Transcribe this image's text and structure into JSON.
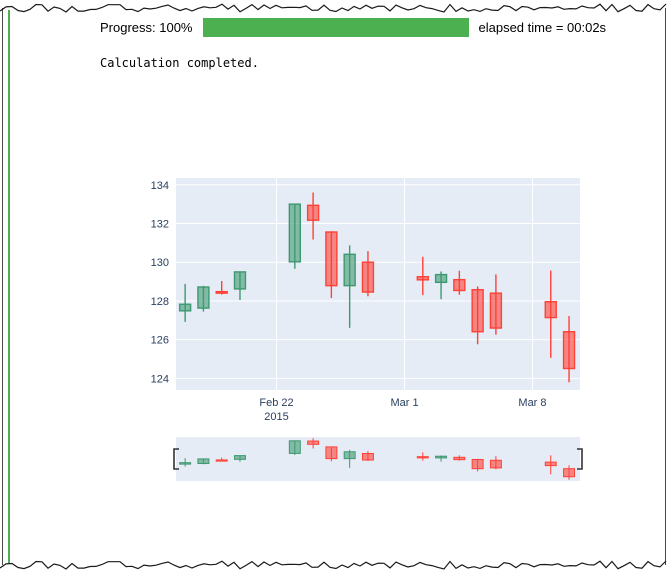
{
  "progress": {
    "label": "Progress: 100%",
    "value": 100,
    "elapsed": "elapsed time = 00:02s"
  },
  "stdout": {
    "text": "Calculation completed."
  },
  "colors": {
    "progress_green": "#4caf50",
    "cell_indicator_green": "#4caf50",
    "plot_bg": "#e5ecf6",
    "grid": "#ffffff",
    "tick_text": "#2a3f5f",
    "increasing": "#3d9970",
    "decreasing": "#ff4136",
    "torn_edge": "#1a1a1a",
    "handle": "#333333"
  },
  "chart_data": {
    "type": "candlestick",
    "title": "",
    "xlabel": "",
    "ylabel": "",
    "x": [
      "2015-02-17",
      "2015-02-18",
      "2015-02-19",
      "2015-02-20",
      "2015-02-23",
      "2015-02-24",
      "2015-02-25",
      "2015-02-26",
      "2015-02-27",
      "2015-03-02",
      "2015-03-03",
      "2015-03-04",
      "2015-03-05",
      "2015-03-06",
      "2015-03-09",
      "2015-03-10"
    ],
    "open": [
      127.49,
      127.63,
      128.48,
      128.62,
      130.02,
      132.94,
      131.56,
      128.79,
      130.0,
      129.25,
      128.96,
      129.1,
      128.58,
      128.4,
      127.96,
      126.41
    ],
    "high": [
      128.88,
      128.78,
      129.03,
      129.5,
      133.0,
      133.6,
      131.6,
      130.87,
      130.57,
      130.28,
      129.52,
      129.56,
      128.75,
      129.37,
      129.57,
      127.22
    ],
    "low": [
      126.92,
      127.45,
      128.33,
      128.05,
      129.66,
      131.17,
      128.15,
      126.61,
      128.24,
      128.3,
      128.09,
      128.32,
      125.76,
      126.26,
      125.06,
      123.8
    ],
    "close": [
      127.83,
      128.72,
      128.45,
      129.5,
      133.0,
      132.17,
      128.79,
      130.41,
      128.46,
      129.09,
      129.36,
      128.54,
      126.41,
      126.6,
      127.14,
      124.51
    ],
    "yticks": [
      124,
      126,
      128,
      130,
      132,
      134
    ],
    "ylim": [
      123.4,
      134.35
    ],
    "xlim_days": [
      -0.5,
      21.6
    ],
    "xticks": [
      {
        "date": "2015-02-22",
        "label": "Feb 22",
        "sublabel": "2015"
      },
      {
        "date": "2015-03-01",
        "label": "Mar 1",
        "sublabel": ""
      },
      {
        "date": "2015-03-08",
        "label": "Mar 8",
        "sublabel": ""
      }
    ],
    "grid": true,
    "legend": false,
    "rangeslider": true
  }
}
